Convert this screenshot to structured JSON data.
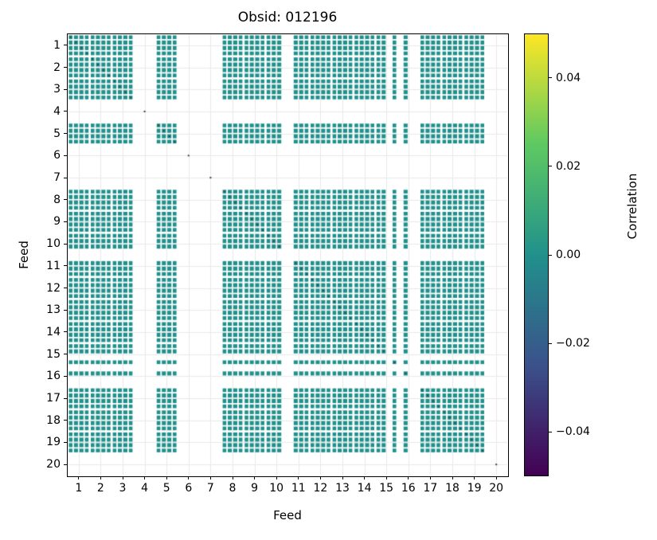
{
  "title": "Obsid: 012196",
  "axes": {
    "xlabel": "Feed",
    "ylabel": "Feed",
    "x_tick_labels": [
      "1",
      "2",
      "3",
      "4",
      "5",
      "6",
      "7",
      "8",
      "9",
      "10",
      "11",
      "12",
      "13",
      "14",
      "15",
      "16",
      "17",
      "18",
      "19",
      "20"
    ],
    "y_tick_labels": [
      "1",
      "2",
      "3",
      "4",
      "5",
      "6",
      "7",
      "8",
      "9",
      "10",
      "11",
      "12",
      "13",
      "14",
      "15",
      "16",
      "17",
      "18",
      "19",
      "20"
    ]
  },
  "colorbar": {
    "label": "Correlation",
    "tick_labels": [
      "0.04",
      "0.02",
      "0.00",
      "−0.02",
      "−0.04"
    ],
    "tick_values": [
      0.04,
      0.02,
      0.0,
      -0.02,
      -0.04
    ],
    "vmin": -0.05,
    "vmax": 0.05,
    "colormap": "viridis"
  },
  "colors": {
    "cell": "#21918c",
    "diagonal_dot": "#31474f",
    "grid": "#e9e9e9",
    "spine": "#000000",
    "background": "#ffffff",
    "viridis_stops": [
      [
        0,
        "#440154"
      ],
      [
        0.25,
        "#3b528b"
      ],
      [
        0.5,
        "#21918c"
      ],
      [
        0.75,
        "#5ec962"
      ],
      [
        1,
        "#fde725"
      ]
    ]
  },
  "chart_data": {
    "type": "heatmap",
    "title": "Obsid: 012196",
    "xlabel": "Feed",
    "ylabel": "Feed",
    "x": [
      1,
      2,
      3,
      4,
      5,
      6,
      7,
      8,
      9,
      10,
      11,
      12,
      13,
      14,
      15,
      16,
      17,
      18,
      19,
      20
    ],
    "y": [
      1,
      2,
      3,
      4,
      5,
      6,
      7,
      8,
      9,
      10,
      11,
      12,
      13,
      14,
      15,
      16,
      17,
      18,
      19,
      20
    ],
    "value_range": [
      -0.05,
      0.05
    ],
    "off_diagonal_value": 0.0,
    "bands_per_feed": 4,
    "feed_band_present": [
      [
        1,
        1,
        1,
        1
      ],
      [
        1,
        1,
        1,
        1
      ],
      [
        1,
        1,
        1,
        1
      ],
      [
        0,
        0,
        0,
        0
      ],
      [
        1,
        1,
        1,
        1
      ],
      [
        0,
        0,
        0,
        0
      ],
      [
        0,
        0,
        0,
        0
      ],
      [
        1,
        1,
        1,
        1
      ],
      [
        1,
        1,
        1,
        1
      ],
      [
        1,
        1,
        1,
        0
      ],
      [
        0,
        1,
        1,
        1
      ],
      [
        1,
        1,
        1,
        1
      ],
      [
        1,
        1,
        1,
        1
      ],
      [
        1,
        1,
        1,
        1
      ],
      [
        1,
        1,
        0,
        1
      ],
      [
        0,
        1,
        0,
        0
      ],
      [
        1,
        1,
        1,
        1
      ],
      [
        1,
        1,
        1,
        1
      ],
      [
        1,
        1,
        1,
        1
      ],
      [
        0,
        0,
        0,
        0
      ]
    ],
    "feeds_with_data": [
      1,
      2,
      3,
      5,
      8,
      9,
      10,
      11,
      12,
      13,
      14,
      15,
      16,
      17,
      18,
      19
    ],
    "feeds_masked": [
      4,
      6,
      7,
      20
    ],
    "grid": true,
    "legend_position": "right-colorbar"
  }
}
